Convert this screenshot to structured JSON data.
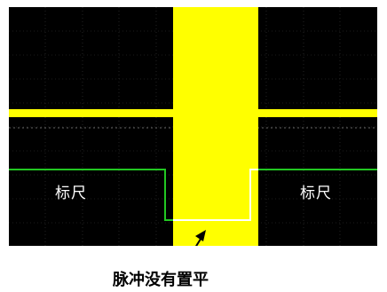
{
  "scope": {
    "cursor_left_label": "标尺",
    "cursor_right_label": "标尺",
    "annotation": "脉冲没有置平"
  },
  "colors": {
    "background": "#000000",
    "signal": "#ffff00",
    "cursor": "#22c722",
    "reference": "#ffffff",
    "grid": "#3a3a3a"
  }
}
